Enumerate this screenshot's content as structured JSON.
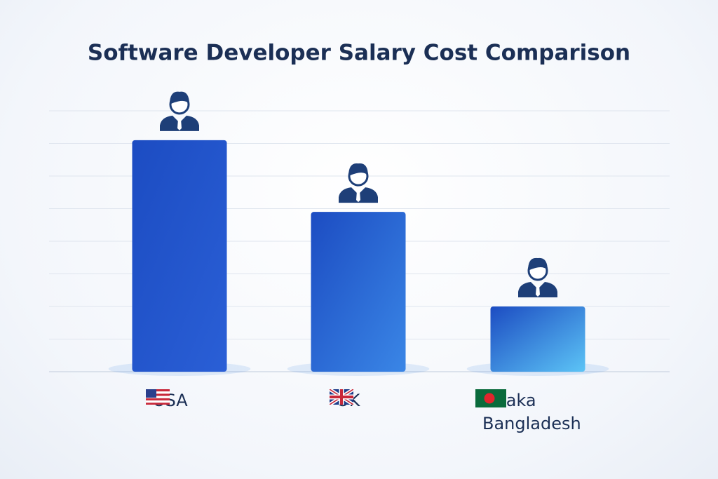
{
  "chart_data": {
    "type": "bar",
    "title": "Software Developer Salary Cost Comparison",
    "categories": [
      "USA",
      "UK",
      "Dhaka Bangladesh"
    ],
    "values": [
      7.1,
      4.9,
      2.0
    ],
    "colors": [
      "#2a5fd6",
      "#3a86e6",
      "#5cc4f6"
    ],
    "ylim": [
      0,
      8
    ],
    "yticks": [
      1,
      2,
      3,
      4,
      5,
      6,
      7,
      8
    ],
    "grid": true
  }
}
